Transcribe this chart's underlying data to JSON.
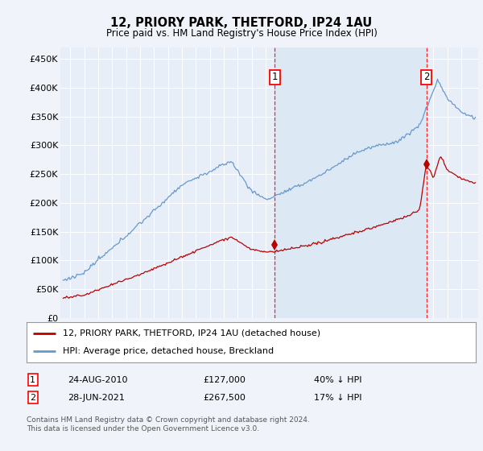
{
  "title": "12, PRIORY PARK, THETFORD, IP24 1AU",
  "subtitle": "Price paid vs. HM Land Registry's House Price Index (HPI)",
  "ylabel_ticks": [
    "£0",
    "£50K",
    "£100K",
    "£150K",
    "£200K",
    "£250K",
    "£300K",
    "£350K",
    "£400K",
    "£450K"
  ],
  "ytick_values": [
    0,
    50000,
    100000,
    150000,
    200000,
    250000,
    300000,
    350000,
    400000,
    450000
  ],
  "ylim": [
    0,
    470000
  ],
  "xlim_start": 1995.3,
  "xlim_end": 2025.2,
  "sale1": {
    "date_num": 2010.648,
    "price": 127000,
    "label": "1",
    "date_str": "24-AUG-2010",
    "hpi_diff": "40% ↓ HPI"
  },
  "sale2": {
    "date_num": 2021.488,
    "price": 267500,
    "label": "2",
    "date_str": "28-JUN-2021",
    "hpi_diff": "17% ↓ HPI"
  },
  "legend_sale": "12, PRIORY PARK, THETFORD, IP24 1AU (detached house)",
  "legend_hpi": "HPI: Average price, detached house, Breckland",
  "footnote": "Contains HM Land Registry data © Crown copyright and database right 2024.\nThis data is licensed under the Open Government Licence v3.0.",
  "sale_color": "#bb0000",
  "hpi_color": "#6699cc",
  "shade_color": "#dde8f5",
  "background_color": "#f0f4fa",
  "plot_bg_color": "#e8eef8",
  "grid_color": "#ffffff"
}
